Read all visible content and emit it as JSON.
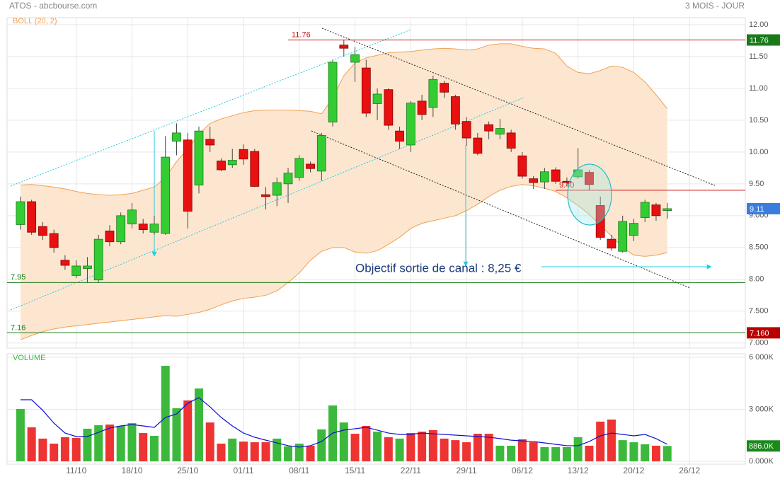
{
  "chart_data": [
    {
      "type": "candlestick",
      "title": "ATOS - abcbourse.com",
      "subtitle": "3 MOIS - JOUR",
      "xlim": [
        -1.2,
        65
      ],
      "xticks": [
        {
          "value": 5,
          "label": "11/10"
        },
        {
          "value": 10,
          "label": "18/10"
        },
        {
          "value": 15,
          "label": "25/10"
        },
        {
          "value": 20,
          "label": "01/11"
        },
        {
          "value": 25,
          "label": "08/11"
        },
        {
          "value": 30,
          "label": "15/11"
        },
        {
          "value": 35,
          "label": "22/11"
        },
        {
          "value": 40,
          "label": "29/11"
        },
        {
          "value": 45,
          "label": "06/12"
        },
        {
          "value": 50,
          "label": "13/12"
        },
        {
          "value": 55,
          "label": "20/12"
        },
        {
          "value": 60,
          "label": "26/12"
        }
      ],
      "ylim": [
        6.92,
        12.11
      ],
      "yticks": [
        {
          "value": 12,
          "label": "12.00"
        },
        {
          "value": 11.5,
          "label": "11.50"
        },
        {
          "value": 11,
          "label": "11.00"
        },
        {
          "value": 10.5,
          "label": "10.50"
        },
        {
          "value": 10,
          "label": "10.00"
        },
        {
          "value": 9.5,
          "label": "9.50"
        },
        {
          "value": 9,
          "label": "9.000"
        },
        {
          "value": 8.5,
          "label": "8.500"
        },
        {
          "value": 8,
          "label": "8.00"
        },
        {
          "value": 7.5,
          "label": "7.500"
        },
        {
          "value": 7,
          "label": "7.000"
        }
      ],
      "grid": true,
      "up_color": "#33cc33",
      "down_color": "#e81010",
      "open": [
        8.86,
        9.22,
        8.83,
        8.72,
        8.3,
        8.06,
        8.17,
        7.99,
        8.76,
        8.59,
        8.87,
        8.87,
        8.74,
        8.72,
        10.17,
        10.19,
        9.48,
        10.2,
        9.86,
        9.8,
        10.04,
        10.01,
        9.33,
        9.32,
        9.5,
        9.6,
        9.81,
        9.7,
        10.47,
        11.68,
        11.41,
        11.32,
        10.76,
        10.98,
        10.33,
        10.11,
        10.8,
        10.7,
        11.08,
        10.87,
        10.48,
        10.22,
        10.43,
        10.28,
        10.3,
        9.94,
        9.58,
        9.53,
        9.72,
        9.54,
        9.61,
        9.68,
        9.16,
        8.63,
        8.44,
        8.69,
        8.97,
        9.17,
        9.08
      ],
      "high": [
        9.3,
        9.25,
        8.9,
        8.78,
        8.38,
        8.3,
        8.35,
        8.7,
        8.85,
        9.05,
        9.2,
        8.95,
        9.0,
        10.25,
        10.45,
        10.3,
        10.4,
        10.4,
        9.9,
        10.05,
        10.12,
        10.05,
        9.45,
        9.6,
        9.75,
        9.95,
        9.85,
        10.3,
        11.45,
        11.76,
        11.65,
        11.45,
        11.0,
        11.0,
        10.4,
        10.8,
        10.9,
        11.2,
        11.12,
        10.9,
        10.55,
        10.3,
        10.48,
        10.52,
        10.35,
        10.0,
        9.62,
        9.75,
        9.76,
        9.6,
        10.06,
        9.72,
        9.3,
        8.7,
        9.0,
        8.95,
        9.25,
        9.2,
        9.2
      ],
      "low": [
        8.78,
        8.7,
        8.62,
        8.42,
        8.15,
        8.02,
        7.95,
        7.95,
        8.52,
        8.55,
        8.8,
        8.72,
        8.7,
        8.7,
        9.95,
        8.8,
        9.35,
        10.0,
        9.7,
        9.75,
        9.8,
        9.45,
        9.1,
        9.15,
        9.2,
        9.55,
        9.68,
        9.55,
        10.4,
        11.5,
        11.1,
        10.55,
        10.5,
        10.35,
        10.05,
        10.0,
        10.5,
        10.55,
        10.85,
        10.35,
        10.1,
        9.95,
        10.2,
        10.2,
        10.0,
        9.58,
        9.42,
        9.42,
        9.5,
        9.48,
        9.58,
        9.4,
        8.62,
        8.45,
        8.42,
        8.6,
        8.9,
        8.92,
        8.95
      ],
      "close": [
        9.22,
        8.74,
        8.69,
        8.5,
        8.22,
        8.21,
        8.21,
        8.63,
        8.59,
        9.0,
        9.09,
        8.78,
        8.87,
        9.92,
        10.3,
        9.07,
        10.33,
        10.11,
        9.72,
        9.87,
        9.89,
        9.46,
        9.3,
        9.52,
        9.67,
        9.9,
        9.74,
        10.26,
        11.41,
        11.63,
        11.53,
        10.61,
        10.91,
        10.42,
        10.17,
        10.77,
        10.59,
        11.14,
        10.94,
        10.44,
        10.22,
        9.98,
        10.33,
        10.37,
        10.06,
        9.62,
        9.52,
        9.69,
        9.54,
        9.52,
        9.72,
        9.49,
        8.66,
        8.49,
        8.91,
        8.88,
        9.21,
        9.0,
        9.11
      ],
      "last_color": "#3b7ddd",
      "bands": {
        "name": "BOLL (20, 2)",
        "color": "#f0a050",
        "fill": "#fde6d0",
        "upper": [
          9.48,
          9.49,
          9.47,
          9.45,
          9.42,
          9.38,
          9.35,
          9.33,
          9.32,
          9.33,
          9.35,
          9.4,
          9.45,
          9.6,
          9.85,
          10.05,
          10.28,
          10.45,
          10.52,
          10.57,
          10.62,
          10.65,
          10.66,
          10.66,
          10.66,
          10.65,
          10.64,
          10.6,
          10.85,
          11.2,
          11.4,
          11.48,
          11.52,
          11.56,
          11.57,
          11.58,
          11.6,
          11.62,
          11.63,
          11.62,
          11.6,
          11.62,
          11.68,
          11.7,
          11.7,
          11.66,
          11.63,
          11.62,
          11.55,
          11.35,
          11.25,
          11.23,
          11.28,
          11.35,
          11.33,
          11.25,
          11.1,
          10.9,
          10.68
        ],
        "lower": [
          7.05,
          7.12,
          7.18,
          7.22,
          7.25,
          7.27,
          7.29,
          7.31,
          7.33,
          7.35,
          7.37,
          7.39,
          7.41,
          7.43,
          7.42,
          7.45,
          7.48,
          7.53,
          7.6,
          7.66,
          7.7,
          7.72,
          7.75,
          7.82,
          7.95,
          8.1,
          8.3,
          8.44,
          8.5,
          8.5,
          8.43,
          8.41,
          8.45,
          8.55,
          8.66,
          8.8,
          8.88,
          8.92,
          8.96,
          9.0,
          9.08,
          9.18,
          9.3,
          9.4,
          9.46,
          9.49,
          9.47,
          9.43,
          9.38,
          9.28,
          9.16,
          9.02,
          8.85,
          8.68,
          8.5,
          8.38,
          8.36,
          8.38,
          8.42
        ]
      },
      "levels": [
        {
          "value": 11.76,
          "label": "11.76",
          "color": "#cc1111",
          "tag": "11.76",
          "tag_color": "#1a7a1a"
        },
        {
          "value": 9.4,
          "label": "9.40",
          "color": "#cc1111"
        },
        {
          "value": 7.95,
          "label": "7.95",
          "color": "#1a7a1a"
        },
        {
          "value": 7.16,
          "label": "7.16",
          "color": "#1a7a1a",
          "tag": "7.160",
          "tag_color": "#b80000"
        }
      ],
      "annotations": [
        {
          "text": "Objectif sortie de canal : 8,25 €",
          "color": "#1a3a7a"
        }
      ]
    },
    {
      "type": "bar",
      "title": "VOLUME",
      "ylim": [
        0,
        6000000
      ],
      "yticks": [
        {
          "value": 0,
          "label": "0.000K"
        },
        {
          "value": 3000000,
          "label": "3 000K"
        },
        {
          "value": 6000000,
          "label": "6 000K"
        }
      ],
      "values": [
        3020000,
        1960000,
        1310000,
        1020000,
        1390000,
        1350000,
        1880000,
        2080000,
        2120000,
        2040000,
        2200000,
        1630000,
        1470000,
        5510000,
        3060000,
        3510000,
        4200000,
        2240000,
        1020000,
        1310000,
        1140000,
        1100000,
        1100000,
        1310000,
        860000,
        1020000,
        900000,
        1840000,
        3220000,
        2240000,
        1590000,
        2040000,
        1710000,
        1390000,
        1310000,
        1630000,
        1710000,
        1800000,
        1310000,
        1220000,
        1100000,
        1590000,
        1590000,
        900000,
        900000,
        1270000,
        1100000,
        820000,
        820000,
        820000,
        1390000,
        900000,
        2290000,
        2410000,
        1220000,
        1100000,
        980000,
        900000,
        886000
      ],
      "colors": [
        "#3cb93c",
        "#ee3333",
        "#ee3333",
        "#ee3333",
        "#ee3333",
        "#ee3333",
        "#3cb93c",
        "#3cb93c",
        "#ee3333",
        "#3cb93c",
        "#3cb93c",
        "#ee3333",
        "#3cb93c",
        "#3cb93c",
        "#3cb93c",
        "#ee3333",
        "#3cb93c",
        "#ee3333",
        "#ee3333",
        "#3cb93c",
        "#ee3333",
        "#ee3333",
        "#ee3333",
        "#3cb93c",
        "#3cb93c",
        "#3cb93c",
        "#ee3333",
        "#3cb93c",
        "#3cb93c",
        "#3cb93c",
        "#ee3333",
        "#ee3333",
        "#3cb93c",
        "#ee3333",
        "#3cb93c",
        "#ee3333",
        "#ee3333",
        "#ee3333",
        "#ee3333",
        "#ee3333",
        "#ee3333",
        "#ee3333",
        "#ee3333",
        "#3cb93c",
        "#3cb93c",
        "#ee3333",
        "#ee3333",
        "#3cb93c",
        "#3cb93c",
        "#3cb93c",
        "#3cb93c",
        "#ee3333",
        "#ee3333",
        "#ee3333",
        "#3cb93c",
        "#3cb93c",
        "#3cb93c",
        "#ee3333",
        "#3cb93c"
      ],
      "last_label": "886.0K",
      "last_color": "#1a8a1a",
      "average": {
        "color": "#1010d0",
        "values": [
          3550000,
          3550000,
          2940000,
          2200000,
          1630000,
          1430000,
          1430000,
          1670000,
          1920000,
          2040000,
          2120000,
          2040000,
          1960000,
          2530000,
          2730000,
          3350000,
          3670000,
          3140000,
          2530000,
          2040000,
          1630000,
          1390000,
          1220000,
          1060000,
          900000,
          820000,
          900000,
          1140000,
          1630000,
          1800000,
          1880000,
          1960000,
          1800000,
          1630000,
          1550000,
          1550000,
          1630000,
          1590000,
          1550000,
          1510000,
          1470000,
          1430000,
          1390000,
          1310000,
          1220000,
          1180000,
          1140000,
          1060000,
          980000,
          900000,
          900000,
          1140000,
          1470000,
          1630000,
          1550000,
          1470000,
          1550000,
          1310000,
          980000
        ]
      }
    }
  ]
}
